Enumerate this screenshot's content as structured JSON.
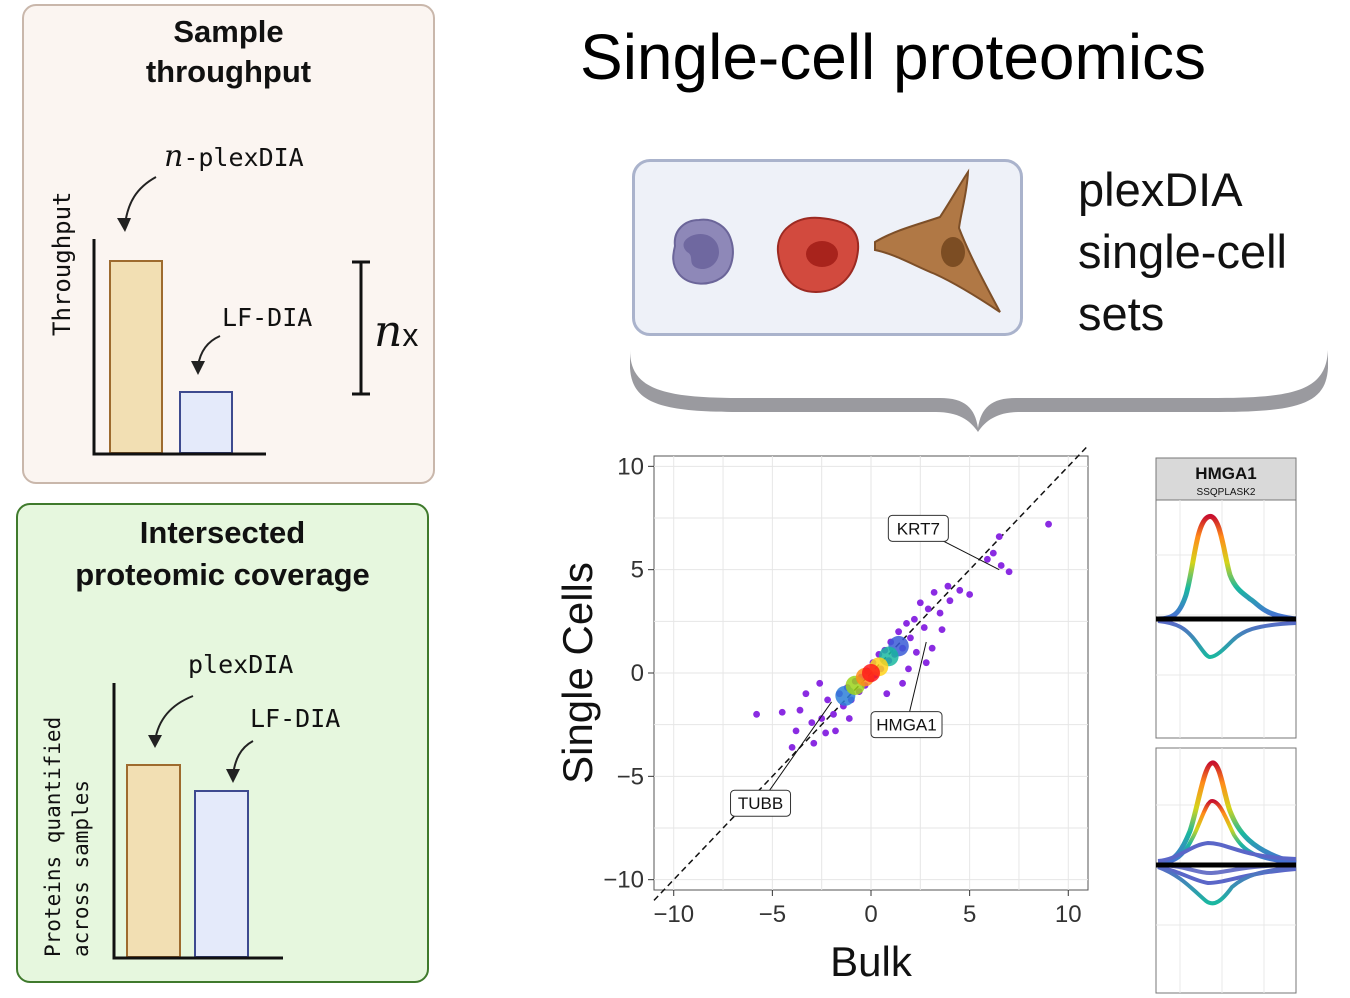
{
  "title": "Single-cell proteomics",
  "throughput_panel": {
    "title_line1": "Sample",
    "title_line2": "throughput",
    "ylabel": "Throughput",
    "nplex_italic": "n",
    "nplex_rest": "-plexDIA",
    "lf_label": "LF-DIA",
    "fold_italic": "n",
    "fold_rest": "x",
    "bars": [
      {
        "name": "n-plexDIA",
        "value": 1.0,
        "fill": "#f2dfb3",
        "stroke": "#9e6b2e"
      },
      {
        "name": "LF-DIA",
        "value": 0.35,
        "fill": "#e4eafa",
        "stroke": "#3d4a8f"
      }
    ]
  },
  "coverage_panel": {
    "title_line1": "Intersected",
    "title_line2": "proteomic coverage",
    "ylabel_line1": "Proteins quantified",
    "ylabel_line2": "across samples",
    "plex_label": "plexDIA",
    "lf_label": "LF-DIA",
    "bars": [
      {
        "name": "plexDIA",
        "value": 1.0,
        "fill": "#f2dfb3",
        "stroke": "#9e6b2e"
      },
      {
        "name": "LF-DIA",
        "value": 0.88,
        "fill": "#e4eafa",
        "stroke": "#3d4a8f"
      }
    ]
  },
  "sets_label": [
    "plexDIA",
    "single-cell",
    "sets"
  ],
  "cell_icons": [
    "lymphocyte-cell-icon",
    "red-cell-icon",
    "fibroblast-cell-icon"
  ],
  "colors": {
    "throughput_bg": "#fbf5f1",
    "coverage_bg": "#e6f7de",
    "coverage_border": "#3f7a2c",
    "scatter_point": "#8a2be2"
  },
  "chart_data": {
    "type": "scatter",
    "xlabel": "Bulk",
    "ylabel": "Single Cells",
    "xlim": [
      -11,
      11
    ],
    "ylim": [
      -10.5,
      10.5
    ],
    "xticks": [
      "−10",
      "−5",
      "0",
      "5",
      "10"
    ],
    "yticks": [
      "10",
      "5",
      "0",
      "−5",
      "−10"
    ],
    "xtick_values": [
      -10,
      -5,
      0,
      5,
      10
    ],
    "ytick_values": [
      10,
      5,
      0,
      -5,
      -10
    ],
    "grid": true,
    "reference_line": {
      "slope": 1,
      "intercept": 0,
      "style": "dashed"
    },
    "annotations": [
      {
        "label": "KRT7",
        "x": 6.5,
        "y": 5.0
      },
      {
        "label": "HMGA1",
        "x": 2.8,
        "y": 1.5
      },
      {
        "label": "TUBB",
        "x": -2.0,
        "y": -1.4
      }
    ],
    "points": [
      [
        9.0,
        7.2
      ],
      [
        6.5,
        6.6
      ],
      [
        6.2,
        5.8
      ],
      [
        7.0,
        4.9
      ],
      [
        6.6,
        5.2
      ],
      [
        5.9,
        5.5
      ],
      [
        4.0,
        3.5
      ],
      [
        3.9,
        4.2
      ],
      [
        3.5,
        2.9
      ],
      [
        3.2,
        3.9
      ],
      [
        2.9,
        3.1
      ],
      [
        2.7,
        2.2
      ],
      [
        2.5,
        3.4
      ],
      [
        2.2,
        2.6
      ],
      [
        2.0,
        1.7
      ],
      [
        1.8,
        2.4
      ],
      [
        1.6,
        1.2
      ],
      [
        1.4,
        2.0
      ],
      [
        1.2,
        0.9
      ],
      [
        1.0,
        1.5
      ],
      [
        0.9,
        0.6
      ],
      [
        0.7,
        1.1
      ],
      [
        0.5,
        0.2
      ],
      [
        0.4,
        0.9
      ],
      [
        0.2,
        -0.1
      ],
      [
        0.1,
        0.5
      ],
      [
        0.0,
        -0.3
      ],
      [
        -0.2,
        0.1
      ],
      [
        -0.3,
        -0.6
      ],
      [
        -0.5,
        -0.2
      ],
      [
        -0.6,
        -0.9
      ],
      [
        -0.8,
        -0.4
      ],
      [
        -1.0,
        -1.3
      ],
      [
        -1.2,
        -0.7
      ],
      [
        -1.4,
        -1.6
      ],
      [
        -1.6,
        -1.0
      ],
      [
        -1.9,
        -2.0
      ],
      [
        -2.2,
        -1.3
      ],
      [
        -2.5,
        -2.2
      ],
      [
        -3.0,
        -2.4
      ],
      [
        -3.8,
        -2.8
      ],
      [
        -4.0,
        -3.6
      ],
      [
        -3.6,
        -1.8
      ],
      [
        -5.8,
        -2.0
      ],
      [
        -3.3,
        -1.0
      ],
      [
        -2.6,
        -0.5
      ],
      [
        2.8,
        0.5
      ],
      [
        3.1,
        1.2
      ],
      [
        1.6,
        -0.5
      ],
      [
        0.8,
        -1.0
      ],
      [
        -1.8,
        -2.8
      ],
      [
        -2.9,
        -3.4
      ],
      [
        4.5,
        4.0
      ],
      [
        5.0,
        3.8
      ],
      [
        2.3,
        1.0
      ],
      [
        1.9,
        0.2
      ],
      [
        -1.1,
        -2.2
      ],
      [
        -2.3,
        -2.9
      ],
      [
        3.6,
        2.1
      ],
      [
        -4.5,
        -1.9
      ]
    ],
    "density_core": [
      {
        "x": 0.0,
        "y": 0.0,
        "color": "#ff1a1a"
      },
      {
        "x": -0.3,
        "y": -0.2,
        "color": "#ff8c1a"
      },
      {
        "x": 0.4,
        "y": 0.3,
        "color": "#ffd21a"
      },
      {
        "x": -0.8,
        "y": -0.6,
        "color": "#9cd41a"
      },
      {
        "x": 0.9,
        "y": 0.8,
        "color": "#1ab8a0"
      },
      {
        "x": -1.3,
        "y": -1.1,
        "color": "#2d7fd8"
      },
      {
        "x": 1.4,
        "y": 1.3,
        "color": "#3a5cd6"
      }
    ]
  },
  "trace_panel": {
    "title": "HMGA1",
    "subtitle": "SSQPLASK2"
  }
}
